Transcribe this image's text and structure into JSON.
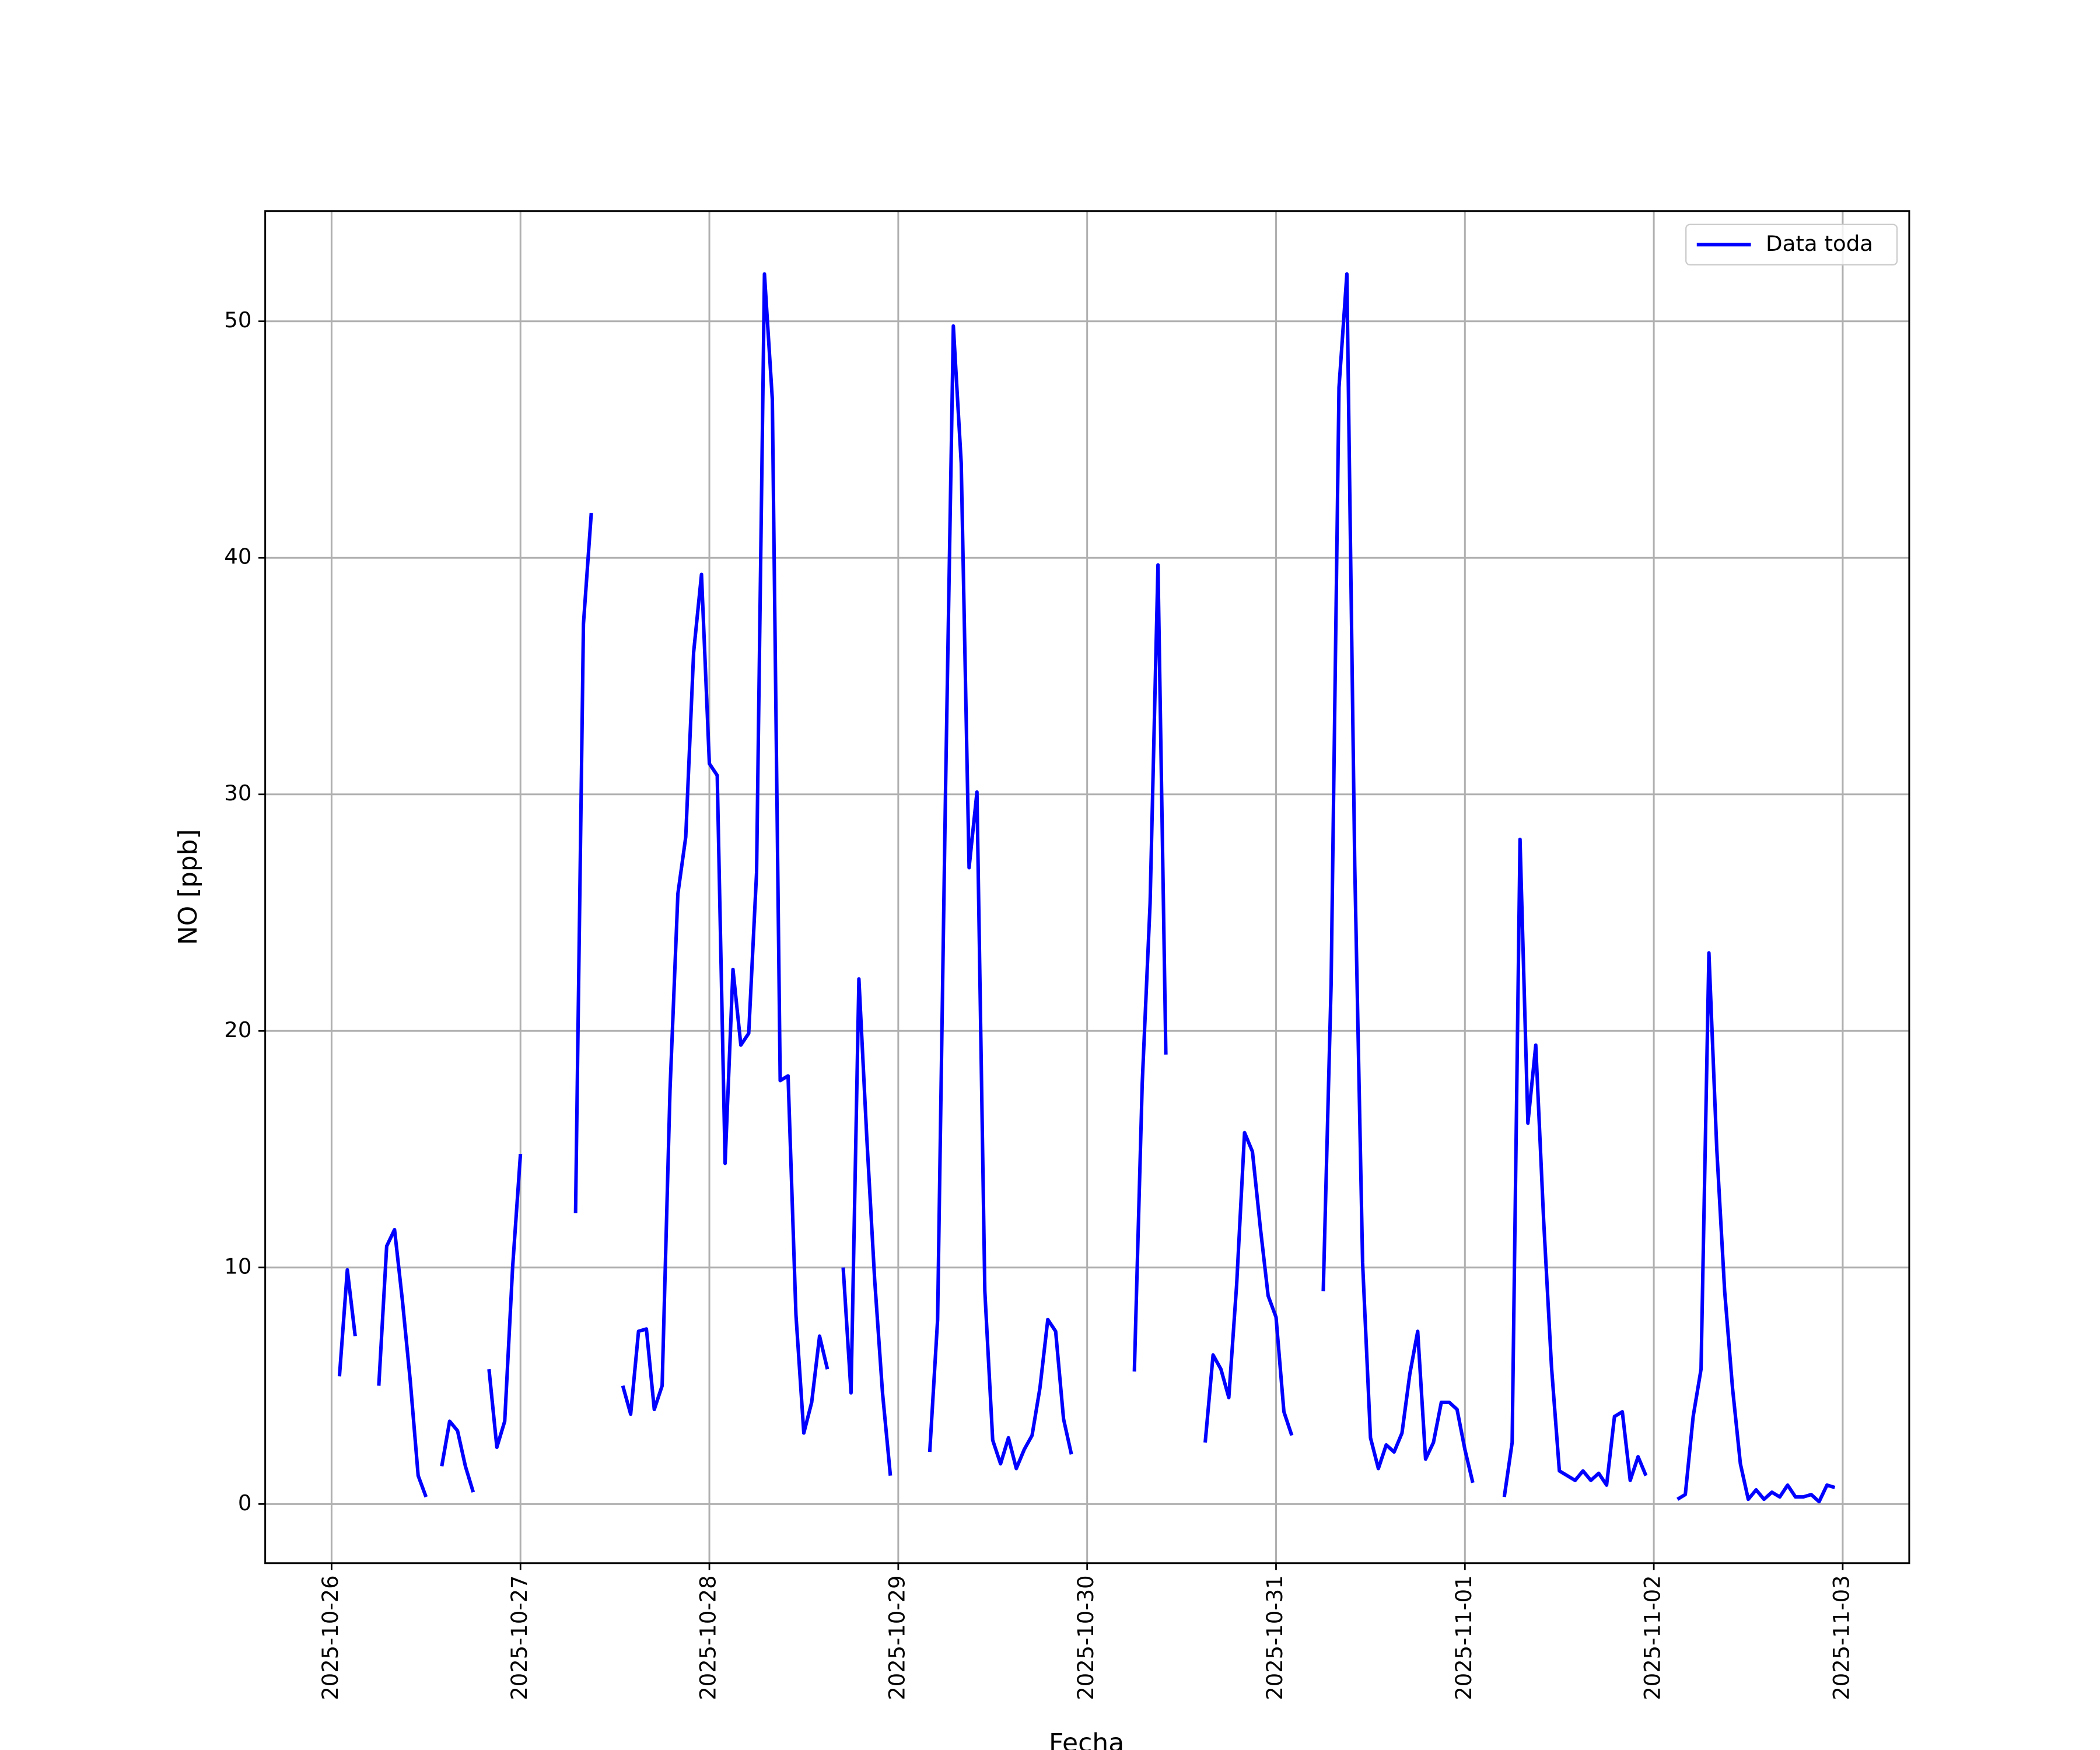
{
  "chart_data": {
    "type": "line",
    "xlabel": "Fecha",
    "ylabel": "NO [ppb]",
    "x": [
      "2025-10-26 01:00",
      "2025-10-26 02:00",
      "2025-10-26 03:00",
      "2025-10-26 04:00",
      "2025-10-26 05:00",
      "2025-10-26 06:00",
      "2025-10-26 07:00",
      "2025-10-26 08:00",
      "2025-10-26 09:00",
      "2025-10-26 10:00",
      "2025-10-26 11:00",
      "2025-10-26 12:00",
      "2025-10-26 13:00",
      "2025-10-26 14:00",
      "2025-10-26 15:00",
      "2025-10-26 16:00",
      "2025-10-26 17:00",
      "2025-10-26 18:00",
      "2025-10-26 19:00",
      "2025-10-26 20:00",
      "2025-10-26 21:00",
      "2025-10-26 22:00",
      "2025-10-26 23:00",
      "2025-10-27 00:00",
      "2025-10-27 01:00",
      "2025-10-27 02:00",
      "2025-10-27 03:00",
      "2025-10-27 04:00",
      "2025-10-27 05:00",
      "2025-10-27 06:00",
      "2025-10-27 07:00",
      "2025-10-27 08:00",
      "2025-10-27 09:00",
      "2025-10-27 10:00",
      "2025-10-27 11:00",
      "2025-10-27 12:00",
      "2025-10-27 13:00",
      "2025-10-27 14:00",
      "2025-10-27 15:00",
      "2025-10-27 16:00",
      "2025-10-27 17:00",
      "2025-10-27 18:00",
      "2025-10-27 19:00",
      "2025-10-27 20:00",
      "2025-10-27 21:00",
      "2025-10-27 22:00",
      "2025-10-27 23:00",
      "2025-10-28 00:00",
      "2025-10-28 01:00",
      "2025-10-28 02:00",
      "2025-10-28 03:00",
      "2025-10-28 04:00",
      "2025-10-28 05:00",
      "2025-10-28 06:00",
      "2025-10-28 07:00",
      "2025-10-28 08:00",
      "2025-10-28 09:00",
      "2025-10-28 10:00",
      "2025-10-28 11:00",
      "2025-10-28 12:00",
      "2025-10-28 13:00",
      "2025-10-28 14:00",
      "2025-10-28 15:00",
      "2025-10-28 16:00",
      "2025-10-28 17:00",
      "2025-10-28 18:00",
      "2025-10-28 19:00",
      "2025-10-28 20:00",
      "2025-10-28 21:00",
      "2025-10-28 22:00",
      "2025-10-28 23:00",
      "2025-10-29 00:00",
      "2025-10-29 01:00",
      "2025-10-29 02:00",
      "2025-10-29 03:00",
      "2025-10-29 04:00",
      "2025-10-29 05:00",
      "2025-10-29 06:00",
      "2025-10-29 07:00",
      "2025-10-29 08:00",
      "2025-10-29 09:00",
      "2025-10-29 10:00",
      "2025-10-29 11:00",
      "2025-10-29 12:00",
      "2025-10-29 13:00",
      "2025-10-29 14:00",
      "2025-10-29 15:00",
      "2025-10-29 16:00",
      "2025-10-29 17:00",
      "2025-10-29 18:00",
      "2025-10-29 19:00",
      "2025-10-29 20:00",
      "2025-10-29 21:00",
      "2025-10-29 22:00",
      "2025-10-29 23:00",
      "2025-10-30 00:00",
      "2025-10-30 01:00",
      "2025-10-30 02:00",
      "2025-10-30 03:00",
      "2025-10-30 04:00",
      "2025-10-30 05:00",
      "2025-10-30 06:00",
      "2025-10-30 07:00",
      "2025-10-30 08:00",
      "2025-10-30 09:00",
      "2025-10-30 10:00",
      "2025-10-30 11:00",
      "2025-10-30 12:00",
      "2025-10-30 13:00",
      "2025-10-30 14:00",
      "2025-10-30 15:00",
      "2025-10-30 16:00",
      "2025-10-30 17:00",
      "2025-10-30 18:00",
      "2025-10-30 19:00",
      "2025-10-30 20:00",
      "2025-10-30 21:00",
      "2025-10-30 22:00",
      "2025-10-30 23:00",
      "2025-10-31 00:00",
      "2025-10-31 01:00",
      "2025-10-31 02:00",
      "2025-10-31 03:00",
      "2025-10-31 04:00",
      "2025-10-31 05:00",
      "2025-10-31 06:00",
      "2025-10-31 07:00",
      "2025-10-31 08:00",
      "2025-10-31 09:00",
      "2025-10-31 10:00",
      "2025-10-31 11:00",
      "2025-10-31 12:00",
      "2025-10-31 13:00",
      "2025-10-31 14:00",
      "2025-10-31 15:00",
      "2025-10-31 16:00",
      "2025-10-31 17:00",
      "2025-10-31 18:00",
      "2025-10-31 19:00",
      "2025-10-31 20:00",
      "2025-10-31 21:00",
      "2025-10-31 22:00",
      "2025-10-31 23:00",
      "2025-11-01 00:00",
      "2025-11-01 01:00",
      "2025-11-01 02:00",
      "2025-11-01 03:00",
      "2025-11-01 04:00",
      "2025-11-01 05:00",
      "2025-11-01 06:00",
      "2025-11-01 07:00",
      "2025-11-01 08:00",
      "2025-11-01 09:00",
      "2025-11-01 10:00",
      "2025-11-01 11:00",
      "2025-11-01 12:00",
      "2025-11-01 13:00",
      "2025-11-01 14:00",
      "2025-11-01 15:00",
      "2025-11-01 16:00",
      "2025-11-01 17:00",
      "2025-11-01 18:00",
      "2025-11-01 19:00",
      "2025-11-01 20:00",
      "2025-11-01 21:00",
      "2025-11-01 22:00",
      "2025-11-01 23:00",
      "2025-11-02 00:00",
      "2025-11-02 01:00",
      "2025-11-02 02:00",
      "2025-11-02 03:00",
      "2025-11-02 04:00",
      "2025-11-02 05:00",
      "2025-11-02 06:00",
      "2025-11-02 07:00",
      "2025-11-02 08:00",
      "2025-11-02 09:00",
      "2025-11-02 10:00",
      "2025-11-02 11:00",
      "2025-11-02 12:00",
      "2025-11-02 13:00",
      "2025-11-02 14:00",
      "2025-11-02 15:00",
      "2025-11-02 16:00",
      "2025-11-02 17:00",
      "2025-11-02 18:00",
      "2025-11-02 19:00",
      "2025-11-02 20:00",
      "2025-11-02 21:00",
      "2025-11-02 22:00",
      "2025-11-02 23:00"
    ],
    "series": [
      {
        "name": "Data toda",
        "color": "#0000ff",
        "values": [
          5.4,
          9.9,
          7.1,
          null,
          null,
          5.0,
          10.9,
          11.6,
          8.6,
          5.2,
          1.2,
          0.3,
          null,
          1.6,
          3.5,
          3.1,
          1.6,
          0.5,
          null,
          5.7,
          2.4,
          3.5,
          10.0,
          14.8,
          null,
          null,
          null,
          null,
          null,
          null,
          12.3,
          37.2,
          41.9,
          null,
          null,
          null,
          5.0,
          3.8,
          7.3,
          7.4,
          4.0,
          5.0,
          17.5,
          25.8,
          28.2,
          36.0,
          39.3,
          31.3,
          30.8,
          14.4,
          22.6,
          19.4,
          19.9,
          26.7,
          52.0,
          46.7,
          17.9,
          18.1,
          8.0,
          3.0,
          4.3,
          7.1,
          5.7,
          null,
          10.0,
          4.7,
          22.2,
          15.5,
          9.5,
          4.7,
          1.2,
          null,
          null,
          null,
          null,
          2.2,
          7.8,
          30.0,
          49.8,
          44.0,
          26.9,
          30.1,
          9.0,
          2.7,
          1.7,
          2.8,
          1.5,
          2.3,
          2.9,
          4.9,
          7.8,
          7.3,
          3.6,
          2.1,
          null,
          null,
          null,
          null,
          null,
          null,
          null,
          5.6,
          17.8,
          25.4,
          39.7,
          19.0,
          null,
          null,
          null,
          null,
          2.6,
          6.3,
          5.7,
          4.5,
          9.3,
          15.7,
          14.9,
          11.7,
          8.8,
          7.9,
          3.9,
          2.9,
          null,
          null,
          null,
          9.0,
          22.0,
          47.2,
          52.0,
          27.0,
          10.2,
          2.8,
          1.5,
          2.5,
          2.2,
          3.0,
          5.5,
          7.3,
          1.9,
          2.6,
          4.3,
          4.3,
          4.0,
          2.3,
          0.9,
          null,
          null,
          null,
          0.3,
          2.6,
          28.1,
          16.1,
          19.4,
          12.0,
          5.8,
          1.4,
          1.2,
          1.0,
          1.4,
          1.0,
          1.3,
          0.8,
          3.7,
          3.9,
          1.0,
          2.0,
          1.2,
          null,
          null,
          null,
          0.2,
          0.4,
          3.7,
          5.7,
          23.3,
          15.0,
          9.0,
          4.9,
          1.7,
          0.2,
          0.6,
          0.2,
          0.5,
          0.3,
          0.8,
          0.3,
          0.3,
          0.4,
          0.1,
          0.8,
          0.7
        ]
      }
    ],
    "xlim": [
      "2025-10-25 15:34",
      "2025-11-03 08:27"
    ],
    "xticks": [
      "2025-10-26",
      "2025-10-27",
      "2025-10-28",
      "2025-10-29",
      "2025-10-30",
      "2025-10-31",
      "2025-11-01",
      "2025-11-02",
      "2025-11-03"
    ],
    "ylim": [
      -2.5,
      54.66
    ],
    "yticks": [
      0,
      10,
      20,
      30,
      40,
      50
    ],
    "grid": true,
    "legend": "upper right"
  }
}
